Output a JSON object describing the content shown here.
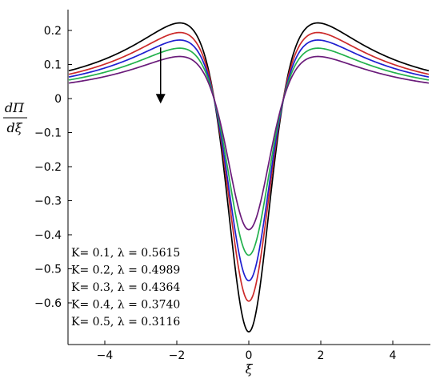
{
  "chart_data": {
    "type": "line",
    "title": "",
    "xlabel": "ξ",
    "ylabel_num": "dΠ",
    "ylabel_den": "dξ",
    "xlim": [
      -5,
      5
    ],
    "ylim": [
      -0.7,
      0.25
    ],
    "xticks": [
      -4,
      -2,
      0,
      2,
      4
    ],
    "xtick_labels": [
      "−4",
      "−2",
      "0",
      "2",
      "4"
    ],
    "yticks": [
      0.2,
      0.1,
      0,
      -0.1,
      -0.2,
      -0.3,
      -0.4,
      -0.5,
      -0.6
    ],
    "ytick_labels": [
      "0.2",
      "0.1",
      "0",
      "−0.1",
      "−0.2",
      "−0.3",
      "−0.4",
      "−0.5",
      "−0.6"
    ],
    "grid": false,
    "legend_position": "bottom-left",
    "arrow": {
      "x": -2.45,
      "y_from": 0.15,
      "y_to": -0.01
    },
    "series": [
      {
        "name": "K= 0.1, λ = 0.5615",
        "color": "#000000",
        "peak": 0.245,
        "trough": -0.685
      },
      {
        "name": "K= 0.2, λ = 0.4989",
        "color": "#cc2a2a",
        "peak": 0.215,
        "trough": -0.595
      },
      {
        "name": "K= 0.3, λ = 0.4364",
        "color": "#1f1fd0",
        "peak": 0.188,
        "trough": -0.535
      },
      {
        "name": "K= 0.4, λ = 0.3740",
        "color": "#22b14c",
        "peak": 0.162,
        "trough": -0.46
      },
      {
        "name": "K= 0.5, λ = 0.3116",
        "color": "#6a1b7a",
        "peak": 0.135,
        "trough": -0.385
      }
    ]
  }
}
